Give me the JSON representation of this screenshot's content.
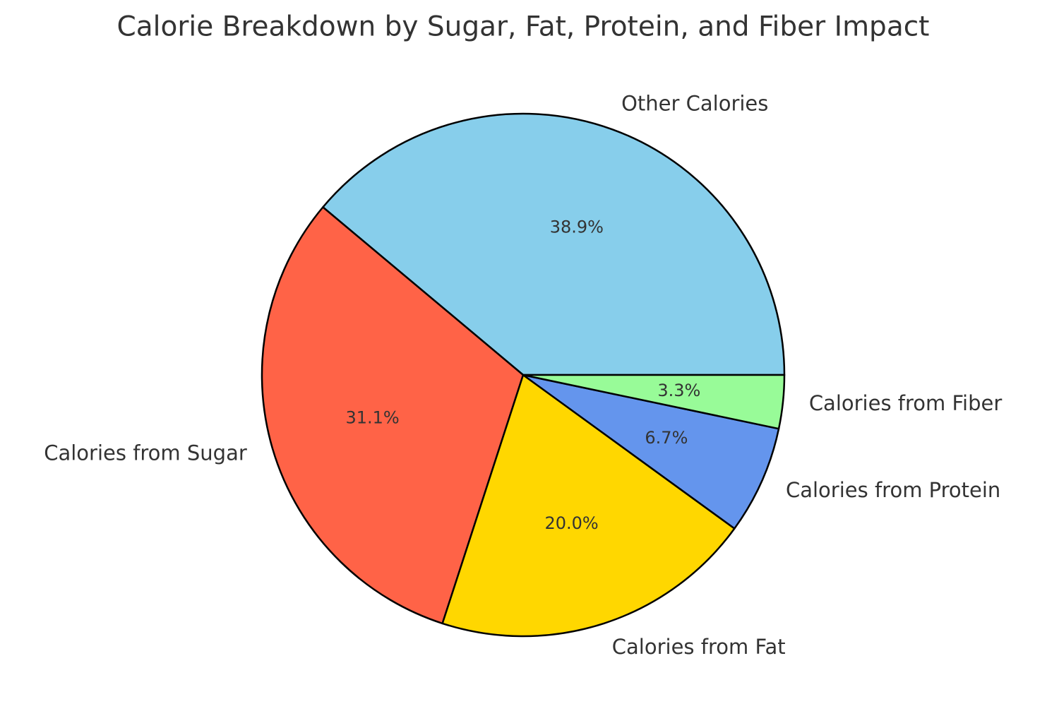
{
  "chart_data": {
    "type": "pie",
    "title": "Calorie Breakdown by Sugar, Fat, Protein, and Fiber Impact",
    "categories": [
      "Other Calories",
      "Calories from Sugar",
      "Calories from Fat",
      "Calories from Protein",
      "Calories from Fiber"
    ],
    "values": [
      38.9,
      31.1,
      20.0,
      6.7,
      3.3
    ],
    "value_labels": [
      "38.9%",
      "31.1%",
      "20.0%",
      "6.7%",
      "3.3%"
    ],
    "colors": [
      "#87ceeb",
      "#ff6347",
      "#ffd700",
      "#6495ed",
      "#98fb98"
    ]
  }
}
